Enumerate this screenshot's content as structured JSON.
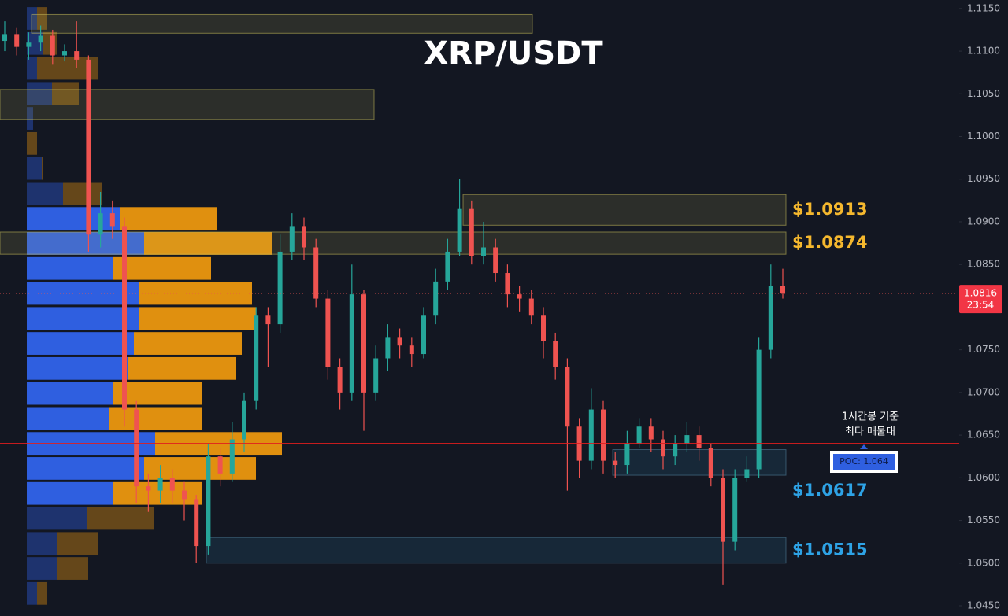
{
  "chart_data": {
    "type": "candlestick",
    "title": "XRP/USDT",
    "ylim": [
      1.0438,
      1.116
    ],
    "yticks": [
      {
        "value": 1.115,
        "label": "1.1150"
      },
      {
        "value": 1.11,
        "label": "1.1100"
      },
      {
        "value": 1.105,
        "label": "1.1050"
      },
      {
        "value": 1.1,
        "label": "1.1000"
      },
      {
        "value": 1.095,
        "label": "1.0950"
      },
      {
        "value": 1.09,
        "label": "1.0900"
      },
      {
        "value": 1.085,
        "label": "1.0850"
      },
      {
        "value": 1.08,
        "label": "1.0800"
      },
      {
        "value": 1.075,
        "label": "1.0750"
      },
      {
        "value": 1.07,
        "label": "1.0700"
      },
      {
        "value": 1.065,
        "label": "1.0650"
      },
      {
        "value": 1.06,
        "label": "1.0600"
      },
      {
        "value": 1.055,
        "label": "1.0550"
      },
      {
        "value": 1.05,
        "label": "1.0500"
      },
      {
        "value": 1.045,
        "label": "1.0450"
      }
    ],
    "up_color": "#26a69a",
    "down_color": "#ef5350",
    "open": [
      1.1112,
      1.112,
      1.1105,
      1.111,
      1.1118,
      1.1095,
      1.11,
      1.109,
      1.0885,
      1.091,
      1.0895,
      1.068,
      1.059,
      1.0585,
      1.06,
      1.0585,
      1.0575,
      1.052,
      1.0625,
      1.0605,
      1.0645,
      1.069,
      1.079,
      1.078,
      1.0865,
      1.0895,
      1.087,
      1.081,
      1.073,
      1.07,
      1.0815,
      1.07,
      1.074,
      1.0765,
      1.0755,
      1.0745,
      1.079,
      1.083,
      1.0865,
      1.0915,
      1.086,
      1.087,
      1.084,
      1.0815,
      1.081,
      1.079,
      1.076,
      1.073,
      1.066,
      1.062,
      1.068,
      1.062,
      1.0615,
      1.064,
      1.066,
      1.0645,
      1.0625,
      1.064,
      1.065,
      1.0635,
      1.06,
      1.0525,
      1.06,
      1.061,
      1.075,
      1.0825
    ],
    "high": [
      1.1135,
      1.1128,
      1.1122,
      1.113,
      1.1125,
      1.1108,
      1.1135,
      1.1095,
      1.0935,
      1.0925,
      1.0905,
      1.069,
      1.0605,
      1.0615,
      1.061,
      1.0595,
      1.058,
      1.064,
      1.0635,
      1.0665,
      1.07,
      1.08,
      1.08,
      1.0885,
      1.091,
      1.0905,
      1.088,
      1.082,
      1.074,
      1.085,
      1.082,
      1.0755,
      1.078,
      1.0775,
      1.0765,
      1.08,
      1.0845,
      1.088,
      1.095,
      1.0925,
      1.09,
      1.088,
      1.085,
      1.0825,
      1.082,
      1.08,
      1.077,
      1.074,
      1.067,
      1.0705,
      1.069,
      1.063,
      1.0655,
      1.067,
      1.067,
      1.0655,
      1.065,
      1.0665,
      1.066,
      1.064,
      1.061,
      1.061,
      1.0625,
      1.0765,
      1.085,
      1.0845
    ],
    "low": [
      1.11,
      1.1095,
      1.109,
      1.11,
      1.1085,
      1.1088,
      1.108,
      1.0865,
      1.087,
      1.088,
      1.066,
      1.057,
      1.056,
      1.057,
      1.057,
      1.055,
      1.05,
      1.051,
      1.059,
      1.0595,
      1.063,
      1.068,
      1.073,
      1.077,
      1.0855,
      1.0855,
      1.08,
      1.0715,
      1.068,
      1.069,
      1.0655,
      1.069,
      1.0725,
      1.074,
      1.073,
      1.074,
      1.078,
      1.082,
      1.086,
      1.085,
      1.085,
      1.083,
      1.08,
      1.0795,
      1.078,
      1.074,
      1.0715,
      1.0585,
      1.06,
      1.061,
      1.0605,
      1.06,
      1.0605,
      1.0635,
      1.063,
      1.061,
      1.0615,
      1.063,
      1.062,
      1.059,
      1.0475,
      1.0515,
      1.0595,
      1.06,
      1.074,
      1.081
    ],
    "close": [
      1.112,
      1.1105,
      1.111,
      1.1118,
      1.1095,
      1.11,
      1.109,
      1.0885,
      1.091,
      1.0895,
      1.068,
      1.059,
      1.0585,
      1.06,
      1.0585,
      1.0575,
      1.052,
      1.0625,
      1.0605,
      1.0645,
      1.069,
      1.079,
      1.078,
      1.0865,
      1.0895,
      1.087,
      1.081,
      1.073,
      1.07,
      1.0815,
      1.07,
      1.074,
      1.0765,
      1.0755,
      1.0745,
      1.079,
      1.083,
      1.0865,
      1.0915,
      1.086,
      1.087,
      1.084,
      1.0815,
      1.081,
      1.079,
      1.076,
      1.073,
      1.066,
      1.062,
      1.068,
      1.062,
      1.0615,
      1.064,
      1.066,
      1.0645,
      1.0625,
      1.064,
      1.065,
      1.0635,
      1.06,
      1.0525,
      1.06,
      1.061,
      1.075,
      1.0825,
      1.0816
    ],
    "volume_profile": {
      "rows_top": 1.1153,
      "row_height": 0.00293,
      "value_area": [
        8,
        19
      ],
      "buy": [
        13,
        20,
        13,
        32,
        8,
        0,
        19,
        46,
        118,
        149,
        110,
        143,
        143,
        136,
        129,
        110,
        104,
        163,
        149,
        110,
        77,
        39,
        39,
        13
      ],
      "sell": [
        13,
        19,
        78,
        34,
        0,
        13,
        2,
        50,
        123,
        162,
        124,
        143,
        148,
        137,
        137,
        112,
        118,
        161,
        142,
        112,
        85,
        52,
        39,
        13
      ],
      "buy_color": "#2f5fe0",
      "sell_color": "#e0900f"
    },
    "zones": [
      {
        "top": 1.1143,
        "bottom": 1.1121
      },
      {
        "top": 1.1055,
        "bottom": 1.102
      },
      {
        "top": 1.0932,
        "bottom": 1.0896,
        "value": 1.0913,
        "label": "$1.0913",
        "color": "#f5b82e"
      },
      {
        "top": 1.0888,
        "bottom": 1.0862,
        "value": 1.0874,
        "label": "$1.0874",
        "color": "#f5b82e"
      },
      {
        "top": 1.0633,
        "bottom": 1.0603,
        "value": 1.0617,
        "label": "$1.0617",
        "color": "#2ea3e6"
      },
      {
        "top": 1.053,
        "bottom": 1.05,
        "value": 1.0515,
        "label": "$1.0515",
        "color": "#2ea3e6"
      }
    ],
    "poc": {
      "value": 1.064,
      "label": "POC: 1.064",
      "color": "#e01e1e"
    },
    "annotation": [
      "1시간봉 기준",
      "최다 매물대"
    ],
    "last_price": {
      "value": 1.0816,
      "label": "1.0816"
    },
    "countdown": "23:54"
  }
}
